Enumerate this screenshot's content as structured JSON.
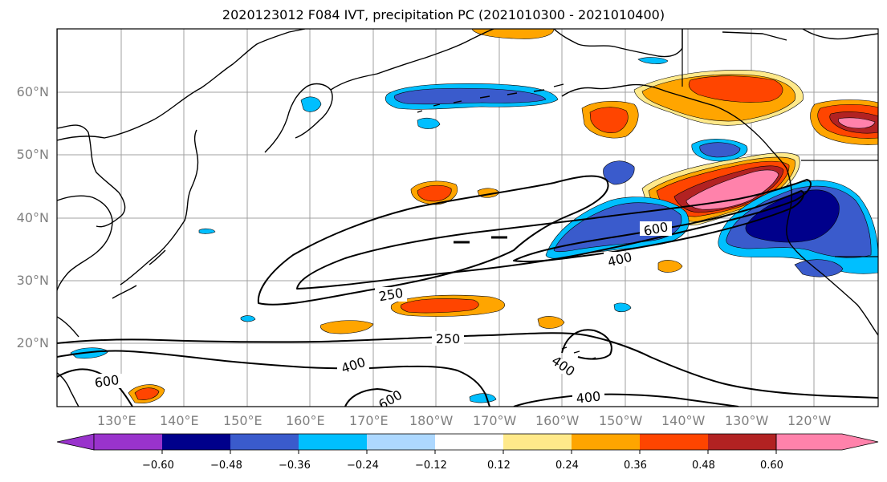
{
  "title": "2020123012 F084 IVT, precipitation PC (2021010300 - 2021010400)",
  "latitude_labels": [
    "60°N",
    "50°N",
    "40°N",
    "30°N",
    "20°N"
  ],
  "longitude_labels": [
    "130°E",
    "140°E",
    "150°E",
    "160°E",
    "170°E",
    "180°W",
    "170°W",
    "160°W",
    "150°W",
    "140°W",
    "130°W",
    "120°W"
  ],
  "contour_labels": [
    "600",
    "400",
    "250",
    "250",
    "400",
    "400",
    "400",
    "600",
    "600"
  ],
  "colorbar": {
    "colors": [
      "#9933cc",
      "#00008b",
      "#3a5bcc",
      "#00bfff",
      "#add8ff",
      "#ffffff",
      "#ffe98a",
      "#ffa500",
      "#ff4500",
      "#b22222",
      "#ff82ab"
    ],
    "tick_labels": [
      "−0.60",
      "−0.48",
      "−0.36",
      "−0.24",
      "−0.12",
      "0.12",
      "0.24",
      "0.36",
      "0.48",
      "0.60"
    ]
  }
}
